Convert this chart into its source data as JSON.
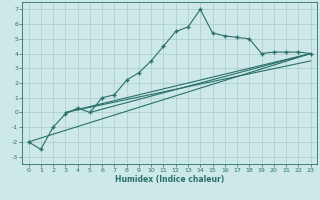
{
  "xlabel": "Humidex (Indice chaleur)",
  "bg_color": "#cce8e8",
  "line_color": "#2a7068",
  "grid_color": "#aacccc",
  "xlim": [
    -0.5,
    23.5
  ],
  "ylim": [
    -3.5,
    7.5
  ],
  "xticks": [
    0,
    1,
    2,
    3,
    4,
    5,
    6,
    7,
    8,
    9,
    10,
    11,
    12,
    13,
    14,
    15,
    16,
    17,
    18,
    19,
    20,
    21,
    22,
    23
  ],
  "yticks": [
    -3,
    -2,
    -1,
    0,
    1,
    2,
    3,
    4,
    5,
    6,
    7
  ],
  "main_x": [
    0,
    1,
    2,
    3,
    4,
    5,
    6,
    7,
    8,
    9,
    10,
    11,
    12,
    13,
    14,
    15,
    16,
    17,
    18,
    19,
    20,
    21,
    22,
    23
  ],
  "main_y": [
    -2.0,
    -2.5,
    -1.0,
    -0.1,
    0.3,
    0.0,
    1.0,
    1.2,
    2.2,
    2.7,
    3.5,
    4.5,
    5.5,
    5.8,
    7.0,
    5.4,
    5.2,
    5.1,
    5.0,
    4.0,
    4.1,
    4.1,
    4.1,
    4.0
  ],
  "line2_x": [
    0,
    23
  ],
  "line2_y": [
    -2.0,
    4.0
  ],
  "line3_x": [
    3,
    23
  ],
  "line3_y": [
    0.0,
    4.0
  ],
  "line4_x": [
    5,
    23
  ],
  "line4_y": [
    0.0,
    4.0
  ],
  "line5_x": [
    3,
    23
  ],
  "line5_y": [
    0.0,
    3.5
  ]
}
